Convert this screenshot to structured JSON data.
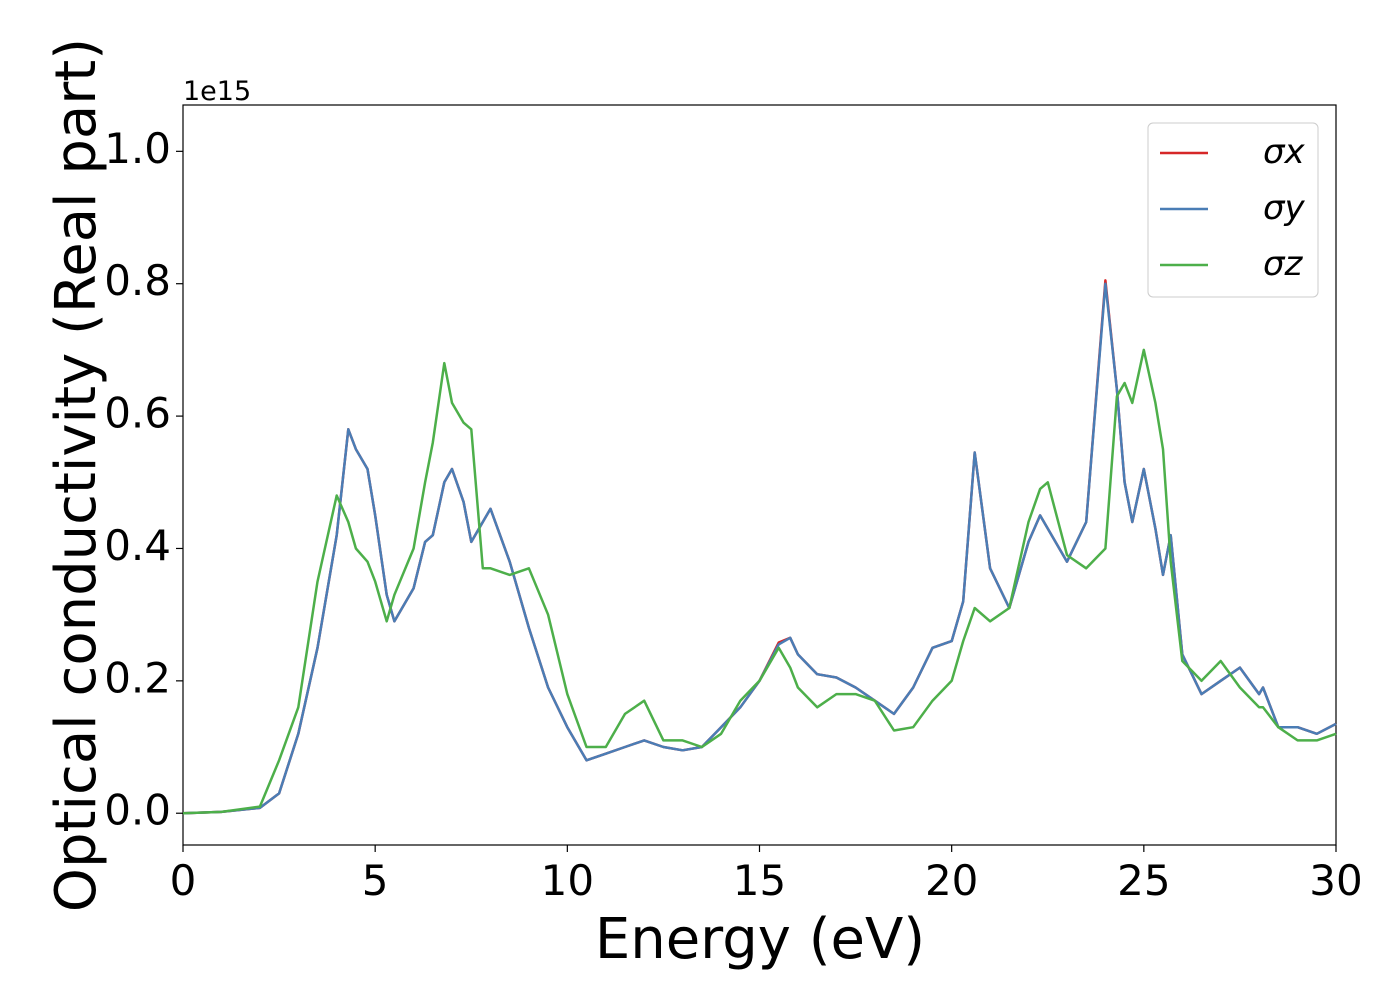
{
  "chart_data": {
    "type": "line",
    "xlabel": "Energy (eV)",
    "ylabel": "Optical conductivity (Real part)",
    "y_offset_label": "1e15",
    "x": [
      0,
      1,
      2,
      2.5,
      3,
      3.5,
      4,
      4.3,
      4.5,
      4.8,
      5,
      5.3,
      5.5,
      6,
      6.3,
      6.5,
      6.8,
      7,
      7.3,
      7.5,
      7.8,
      8,
      8.5,
      9,
      9.5,
      10,
      10.5,
      11,
      11.5,
      12,
      12.5,
      13,
      13.5,
      14,
      14.5,
      15,
      15.5,
      15.8,
      16,
      16.5,
      17,
      17.5,
      18,
      18.5,
      19,
      19.5,
      20,
      20.3,
      20.6,
      21,
      21.5,
      22,
      22.3,
      22.5,
      23,
      23.5,
      24,
      24.3,
      24.5,
      24.7,
      25,
      25.3,
      25.5,
      25.7,
      26,
      26.5,
      27,
      27.5,
      28,
      28.1,
      28.5,
      29,
      29.5,
      30
    ],
    "series": [
      {
        "name": "σx",
        "color": "#d62728",
        "values": [
          0,
          0.002,
          0.008,
          0.03,
          0.12,
          0.25,
          0.42,
          0.58,
          0.55,
          0.52,
          0.45,
          0.33,
          0.29,
          0.34,
          0.41,
          0.42,
          0.5,
          0.52,
          0.47,
          0.41,
          0.44,
          0.46,
          0.38,
          0.28,
          0.19,
          0.13,
          0.08,
          0.09,
          0.1,
          0.11,
          0.1,
          0.095,
          0.1,
          0.13,
          0.16,
          0.2,
          0.258,
          0.265,
          0.24,
          0.21,
          0.205,
          0.19,
          0.17,
          0.15,
          0.19,
          0.25,
          0.26,
          0.32,
          0.545,
          0.37,
          0.31,
          0.41,
          0.45,
          0.43,
          0.38,
          0.44,
          0.805,
          0.64,
          0.5,
          0.44,
          0.52,
          0.43,
          0.36,
          0.42,
          0.24,
          0.18,
          0.2,
          0.22,
          0.18,
          0.19,
          0.13,
          0.13,
          0.12,
          0.135
        ]
      },
      {
        "name": "σy",
        "color": "#4a7db5",
        "values": [
          0,
          0.002,
          0.008,
          0.03,
          0.12,
          0.25,
          0.42,
          0.58,
          0.55,
          0.52,
          0.45,
          0.33,
          0.29,
          0.34,
          0.41,
          0.42,
          0.5,
          0.52,
          0.47,
          0.41,
          0.44,
          0.46,
          0.38,
          0.28,
          0.19,
          0.13,
          0.08,
          0.09,
          0.1,
          0.11,
          0.1,
          0.095,
          0.1,
          0.13,
          0.16,
          0.2,
          0.255,
          0.265,
          0.24,
          0.21,
          0.205,
          0.19,
          0.17,
          0.15,
          0.19,
          0.25,
          0.26,
          0.32,
          0.545,
          0.37,
          0.31,
          0.41,
          0.45,
          0.43,
          0.38,
          0.44,
          0.8,
          0.64,
          0.5,
          0.44,
          0.52,
          0.43,
          0.36,
          0.42,
          0.24,
          0.18,
          0.2,
          0.22,
          0.18,
          0.19,
          0.13,
          0.13,
          0.12,
          0.135
        ]
      },
      {
        "name": "σz",
        "color": "#4daf4a",
        "values": [
          0,
          0.002,
          0.01,
          0.08,
          0.16,
          0.35,
          0.48,
          0.44,
          0.4,
          0.38,
          0.35,
          0.29,
          0.33,
          0.4,
          0.5,
          0.56,
          0.68,
          0.62,
          0.59,
          0.58,
          0.37,
          0.37,
          0.36,
          0.37,
          0.3,
          0.18,
          0.1,
          0.1,
          0.15,
          0.17,
          0.11,
          0.11,
          0.1,
          0.12,
          0.17,
          0.2,
          0.25,
          0.22,
          0.19,
          0.16,
          0.18,
          0.18,
          0.17,
          0.125,
          0.13,
          0.17,
          0.2,
          0.26,
          0.31,
          0.29,
          0.31,
          0.44,
          0.49,
          0.5,
          0.39,
          0.37,
          0.4,
          0.63,
          0.65,
          0.62,
          0.7,
          0.62,
          0.55,
          0.38,
          0.23,
          0.2,
          0.23,
          0.19,
          0.16,
          0.16,
          0.13,
          0.11,
          0.11,
          0.12
        ]
      }
    ],
    "xlim": [
      0,
      30
    ],
    "xticks": [
      0,
      5,
      10,
      15,
      20,
      25,
      30
    ],
    "ylim": [
      -0.048,
      1.07
    ],
    "yticks": [
      {
        "value": 0,
        "label": "0.0"
      },
      0.2,
      0.4,
      0.6,
      0.8,
      {
        "value": 1,
        "label": "1.0"
      }
    ],
    "grid": false,
    "legend": "upper right"
  }
}
